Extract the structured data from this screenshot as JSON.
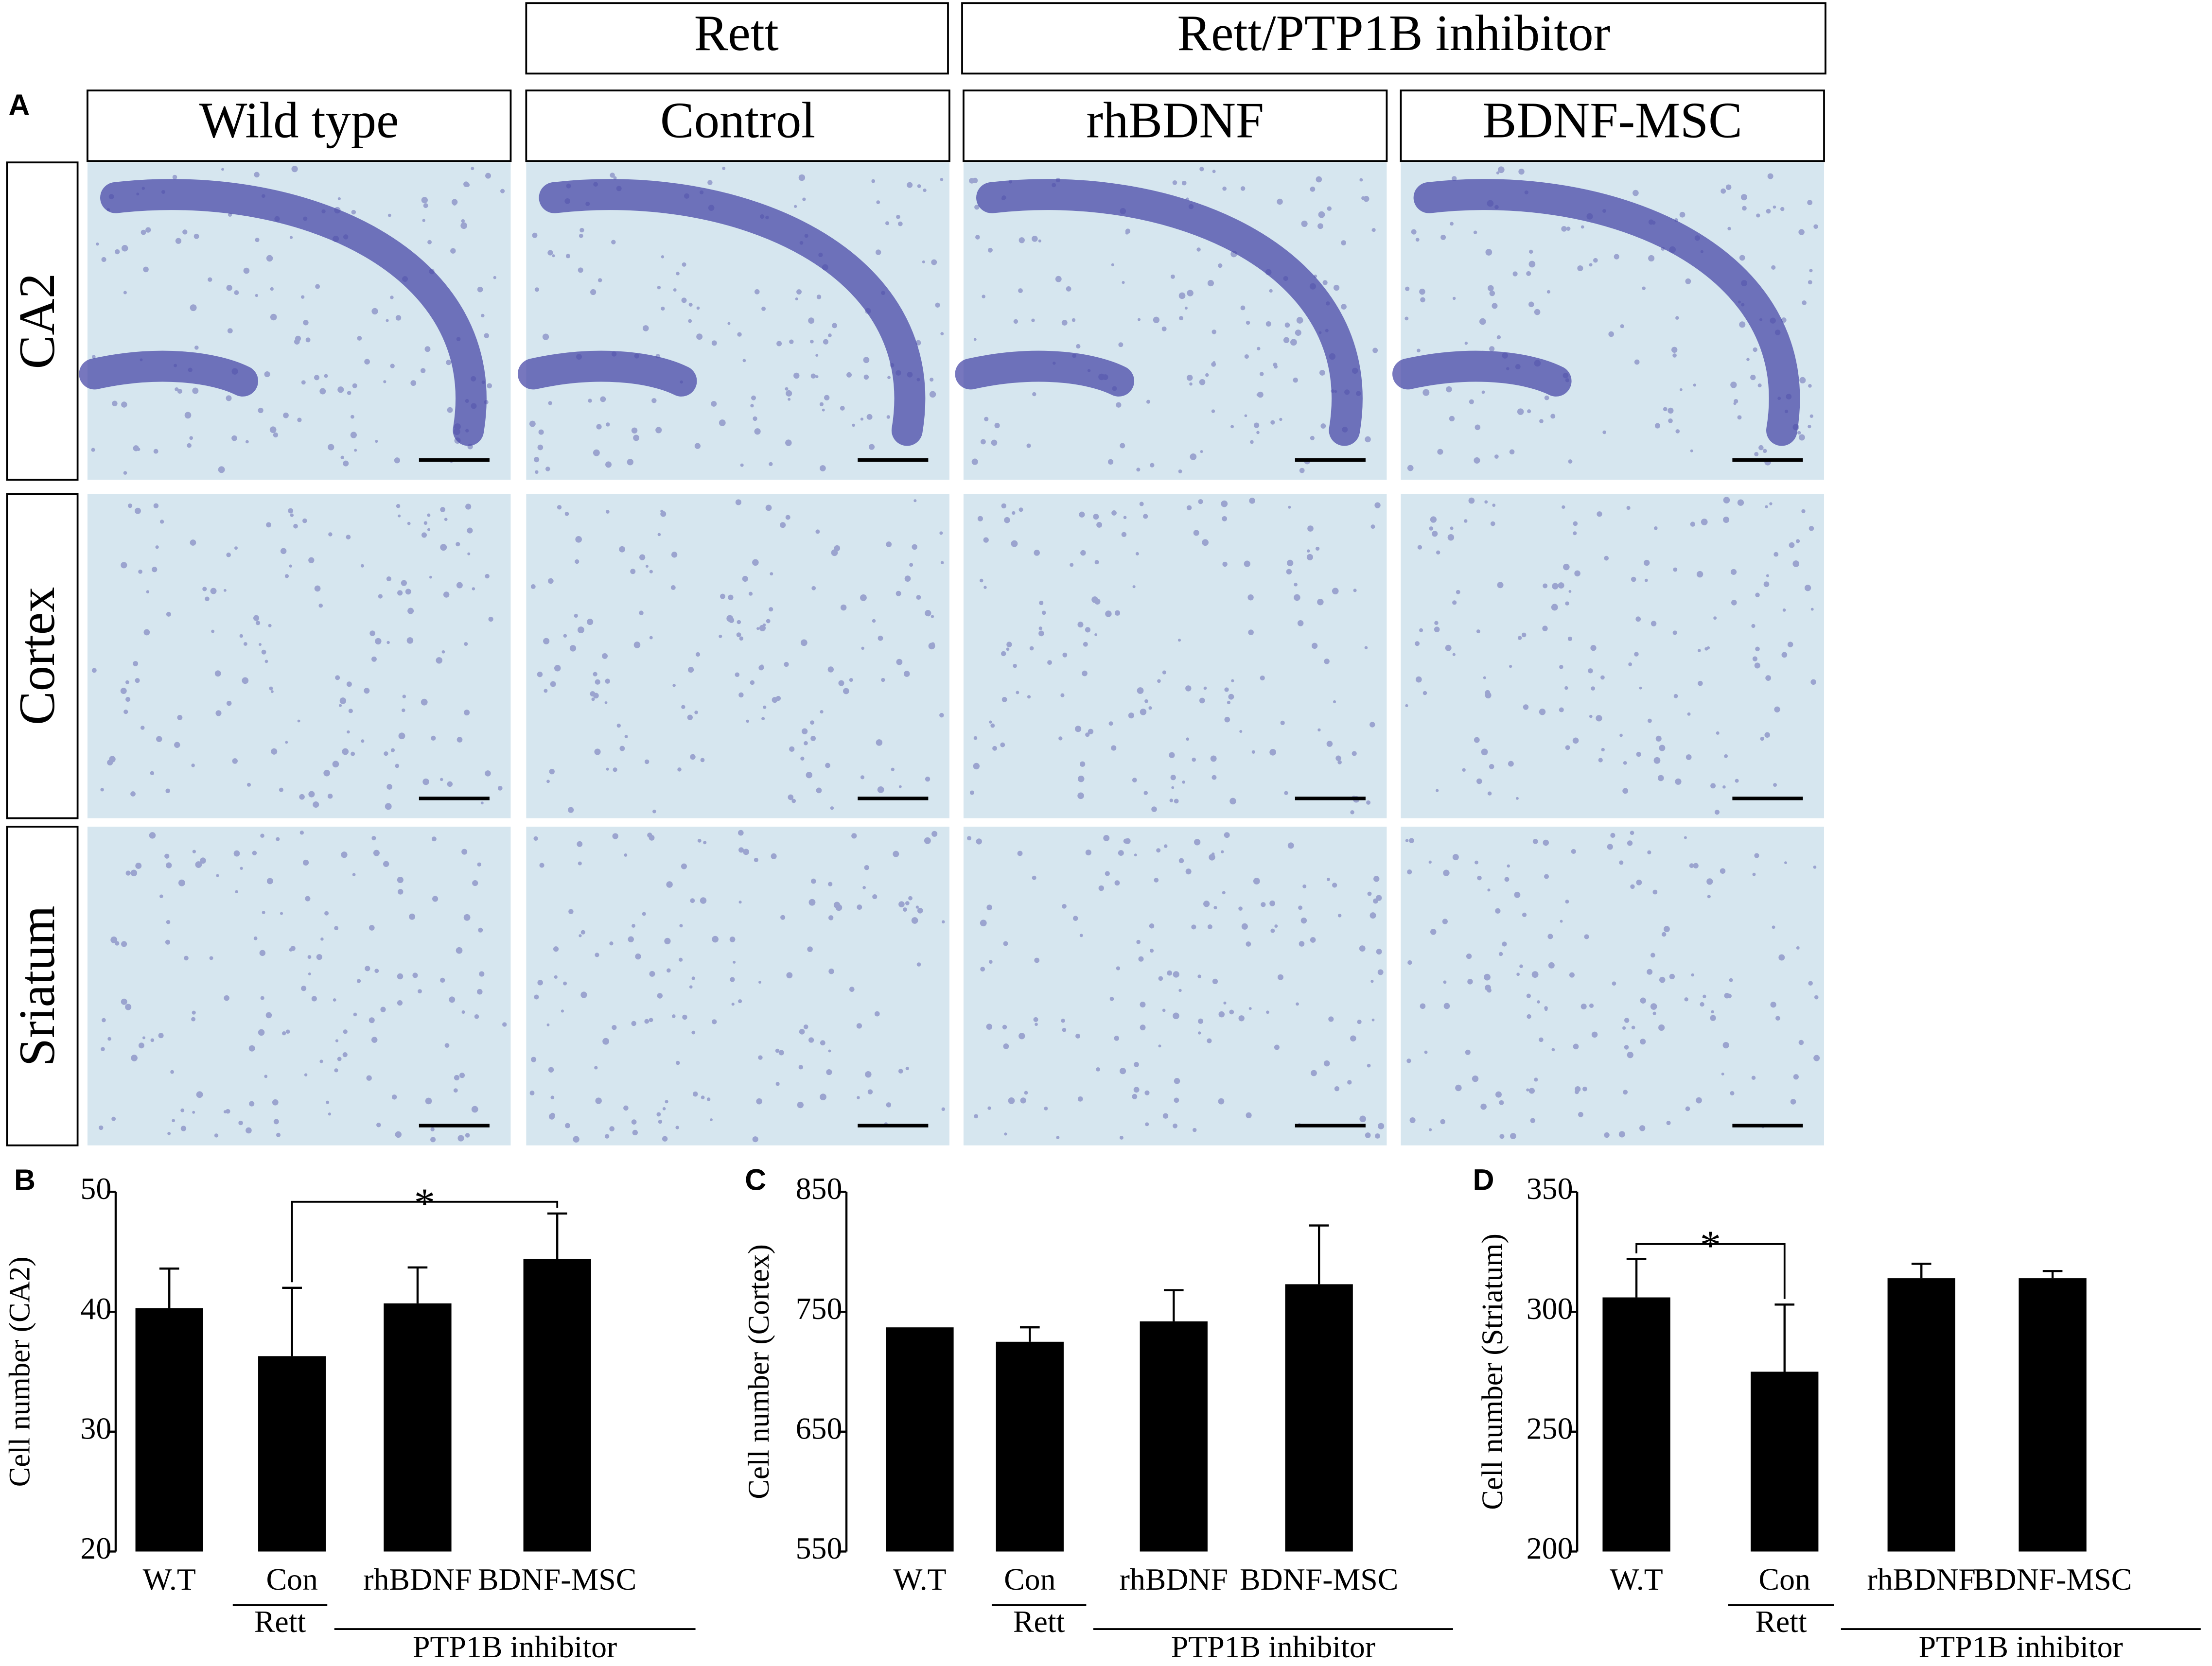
{
  "panel_a": {
    "label": "A",
    "group_headers": [
      "Rett",
      "Rett/PTP1B inhibitor"
    ],
    "columns": [
      "Wild type",
      "Control",
      "rhBDNF",
      "BDNF-MSC"
    ],
    "rows": [
      "CA2",
      "Cortex",
      "Sriatum"
    ]
  },
  "chart_data": [
    {
      "type": "bar",
      "panel_label": "B",
      "y_label": "Cell number (CA2)",
      "categories": [
        "W.T",
        "Con",
        "rhBDNF",
        "BDNF-MSC"
      ],
      "values": [
        40.3,
        36.3,
        40.7,
        44.4
      ],
      "errors": [
        3.3,
        5.7,
        3.0,
        3.8
      ],
      "color": "#000000",
      "group_labels": [
        "Rett",
        "PTP1B inhibitor"
      ],
      "annotations": [
        "*"
      ],
      "ylim": [
        20,
        50
      ],
      "yticks": [
        20,
        30,
        40,
        50
      ]
    },
    {
      "type": "bar",
      "panel_label": "C",
      "y_label": "Cell number (Cortex)",
      "categories": [
        "W.T",
        "Con",
        "rhBDNF",
        "BDNF-MSC"
      ],
      "values": [
        737,
        725,
        742,
        773
      ],
      "errors": [
        null,
        12,
        26,
        49
      ],
      "color": "#000000",
      "group_labels": [
        "Rett",
        "PTP1B inhibitor"
      ],
      "ylim": [
        550,
        850
      ],
      "yticks": [
        550,
        650,
        750,
        850
      ]
    },
    {
      "type": "bar",
      "panel_label": "D",
      "y_label": "Cell number (Striatum)",
      "categories": [
        "W.T",
        "Con",
        "rhBDNF",
        "BDNF-MSC"
      ],
      "values": [
        306,
        275,
        314,
        314
      ],
      "errors": [
        16,
        28,
        6,
        3
      ],
      "color": "#000000",
      "group_labels": [
        "Rett",
        "PTP1B inhibitor"
      ],
      "annotations": [
        "*"
      ],
      "ylim": [
        200,
        350
      ],
      "yticks": [
        200,
        250,
        300,
        350
      ]
    }
  ]
}
